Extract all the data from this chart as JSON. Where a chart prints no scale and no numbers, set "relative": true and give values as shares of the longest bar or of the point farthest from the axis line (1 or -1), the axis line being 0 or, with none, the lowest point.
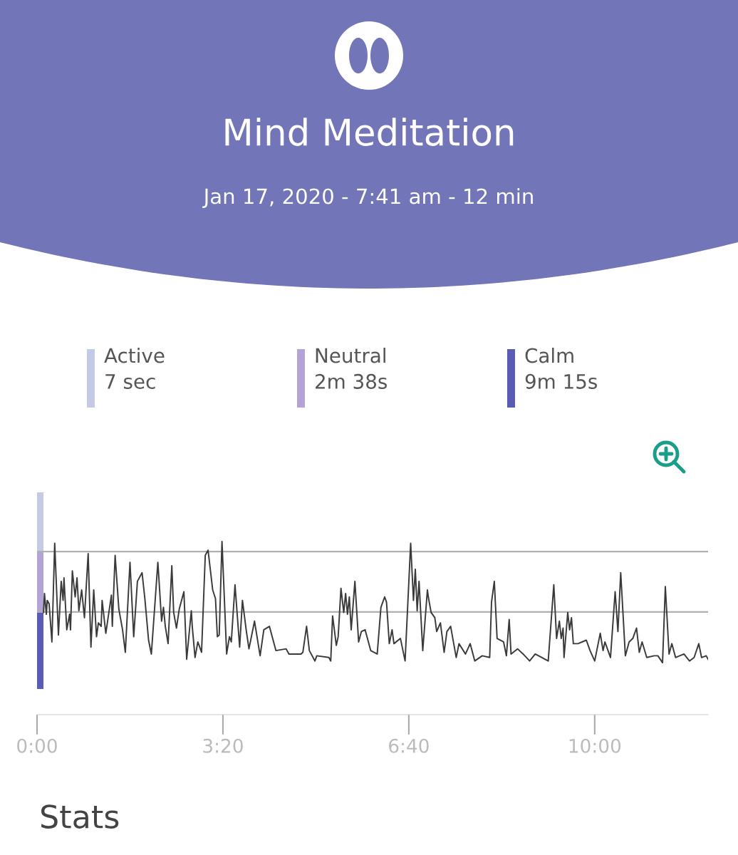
{
  "chart_data": {
    "type": "line",
    "title": "Mind Meditation",
    "subtitle": "Jan 17, 2020 - 7:41 am - 12 min",
    "relative": true,
    "x": [
      7,
      8,
      10,
      11,
      13,
      16,
      19,
      23,
      26,
      28,
      29,
      32,
      35,
      36,
      38,
      41,
      43,
      45,
      48,
      51,
      55,
      58,
      61,
      64,
      66,
      69,
      70,
      74,
      80,
      81,
      84,
      88,
      92,
      95,
      100,
      104,
      108,
      113,
      116,
      120,
      123,
      130,
      134,
      136,
      138,
      141,
      145,
      147,
      150,
      153,
      158,
      161,
      166,
      167,
      170,
      173,
      177,
      181,
      184,
      189,
      192,
      194,
      196,
      199,
      204,
      207,
      209,
      213,
      218,
      221,
      225,
      228,
      234,
      240,
      244,
      250,
      257,
      268,
      271,
      284,
      286,
      290,
      293,
      299,
      301,
      314,
      316,
      318,
      322,
      324,
      327,
      330,
      332,
      334,
      336,
      338,
      342,
      346,
      349,
      353,
      359,
      366,
      370,
      374,
      376,
      379,
      382,
      384,
      391,
      396,
      402,
      405,
      407,
      409,
      411,
      415,
      420,
      421,
      424,
      428,
      430,
      434,
      438,
      441,
      445,
      451,
      454,
      461,
      466,
      471,
      479,
      487,
      489,
      492,
      495,
      502,
      505,
      508,
      510,
      517,
      523,
      530,
      536,
      550,
      556,
      559,
      562,
      564,
      566,
      567,
      571,
      573,
      575,
      577,
      582,
      591,
      595,
      600,
      606,
      609,
      611,
      617,
      622,
      625,
      628,
      633,
      637,
      641,
      645,
      648,
      651,
      656,
      664,
      668,
      673,
      676,
      680,
      683,
      687,
      696,
      702,
      707,
      712,
      715,
      720,
      722
    ],
    "series": [
      {
        "color": "#3a3a3a",
        "values": [
          0.59,
          0.7,
          0.58,
          0.66,
          0.64,
          0.42,
          0.99,
          0.46,
          0.77,
          0.66,
          0.79,
          0.49,
          0.58,
          0.49,
          0.83,
          0.68,
          0.79,
          0.6,
          0.72,
          0.56,
          0.93,
          0.39,
          0.72,
          0.45,
          0.53,
          0.51,
          0.66,
          0.47,
          0.69,
          0.51,
          0.92,
          0.61,
          0.49,
          0.36,
          0.88,
          0.45,
          0.77,
          0.82,
          0.67,
          0.43,
          0.35,
          0.88,
          0.54,
          0.62,
          0.51,
          0.41,
          0.86,
          0.59,
          0.5,
          0.61,
          0.71,
          0.32,
          0.6,
          0.51,
          0.33,
          0.42,
          0.36,
          0.92,
          0.95,
          0.72,
          0.67,
          0.45,
          0.46,
          1.0,
          0.35,
          0.45,
          0.42,
          0.75,
          0.39,
          0.66,
          0.49,
          0.38,
          0.54,
          0.34,
          0.49,
          0.51,
          0.37,
          0.38,
          0.35,
          0.35,
          0.36,
          0.51,
          0.37,
          0.31,
          0.34,
          0.33,
          0.31,
          0.57,
          0.4,
          0.45,
          0.73,
          0.59,
          0.7,
          0.58,
          0.68,
          0.49,
          0.77,
          0.42,
          0.48,
          0.49,
          0.37,
          0.35,
          0.62,
          0.68,
          0.65,
          0.41,
          0.49,
          0.41,
          0.44,
          0.31,
          0.99,
          0.66,
          0.84,
          0.6,
          0.77,
          0.37,
          0.72,
          0.68,
          0.59,
          0.56,
          0.48,
          0.53,
          0.36,
          0.48,
          0.51,
          0.33,
          0.41,
          0.35,
          0.41,
          0.31,
          0.34,
          0.33,
          0.65,
          0.77,
          0.44,
          0.42,
          0.34,
          0.55,
          0.35,
          0.38,
          0.35,
          0.31,
          0.35,
          0.31,
          0.75,
          0.44,
          0.54,
          0.44,
          0.5,
          0.33,
          0.59,
          0.49,
          0.56,
          0.41,
          0.41,
          0.43,
          0.37,
          0.31,
          0.47,
          0.37,
          0.42,
          0.33,
          0.71,
          0.48,
          0.82,
          0.34,
          0.42,
          0.44,
          0.5,
          0.36,
          0.42,
          0.33,
          0.34,
          0.34,
          0.3,
          0.74,
          0.35,
          0.41,
          0.33,
          0.35,
          0.31,
          0.33,
          0.41,
          0.33,
          0.34,
          0.32
        ]
      }
    ],
    "xlim": [
      0,
      722
    ],
    "xticks": [
      {
        "value": 0,
        "label": "0:00"
      },
      {
        "value": 200,
        "label": "3:20"
      },
      {
        "value": 400,
        "label": "6:40"
      },
      {
        "value": 600,
        "label": "10:00"
      }
    ],
    "tick_labels": "x",
    "marker": "none",
    "line_style": "solid",
    "grid": false,
    "ref_lines": [
      {
        "axis": "y",
        "value": 0.942,
        "color": "#b0b0b0"
      },
      {
        "axis": "y",
        "value": 0.593,
        "color": "#b0b0b0"
      }
    ],
    "annotations": [
      "Active\n7 sec",
      "Neutral\n2m 38s",
      "Calm\n9m 15s",
      "Stats"
    ]
  }
}
